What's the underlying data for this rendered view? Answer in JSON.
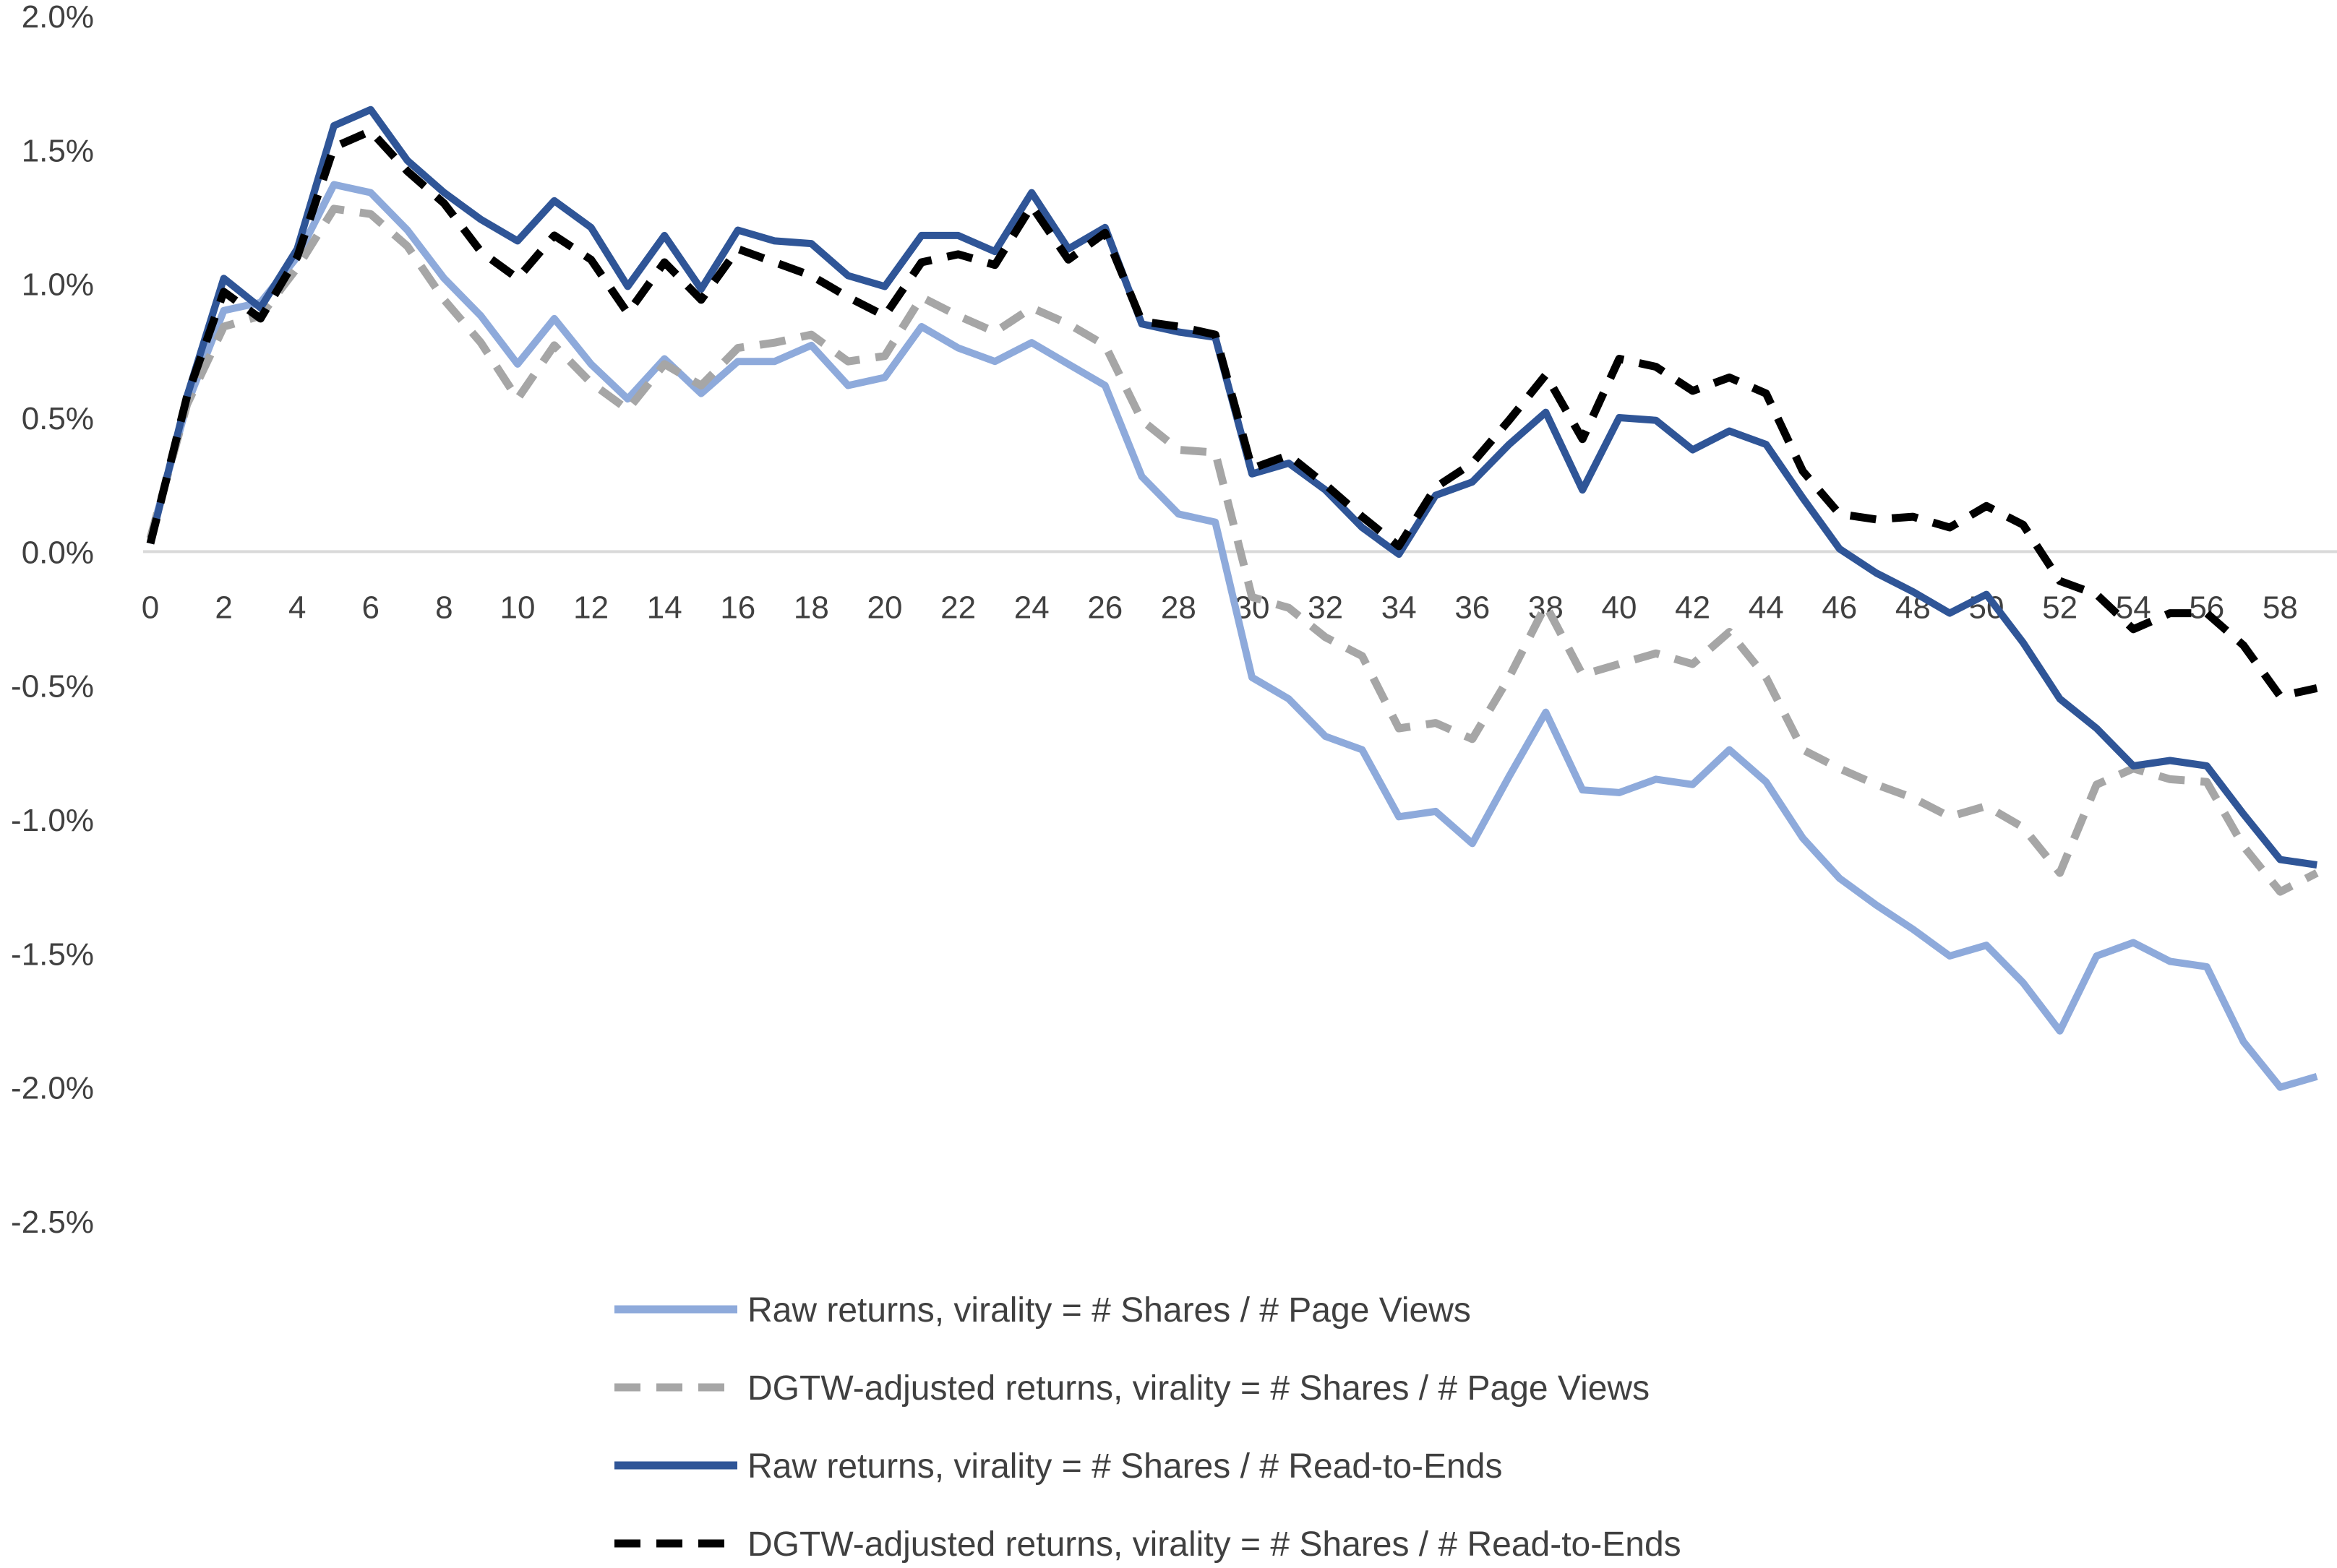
{
  "chart_data": {
    "type": "line",
    "title": "",
    "xlabel": "",
    "ylabel": "",
    "ylim": [
      -2.5,
      2.0
    ],
    "xlim": [
      0,
      59
    ],
    "grid": false,
    "legend_position": "bottom",
    "y_ticks": [
      "2.0%",
      "1.5%",
      "1.0%",
      "0.5%",
      "0.0%",
      "-0.5%",
      "-1.0%",
      "-1.5%",
      "-2.0%",
      "-2.5%"
    ],
    "y_tick_values": [
      2.0,
      1.5,
      1.0,
      0.5,
      0.0,
      -0.5,
      -1.0,
      -1.5,
      -2.0,
      -2.5
    ],
    "x_ticks": [
      "0",
      "2",
      "4",
      "6",
      "8",
      "10",
      "12",
      "14",
      "16",
      "18",
      "20",
      "22",
      "24",
      "26",
      "28",
      "30",
      "32",
      "34",
      "36",
      "38",
      "40",
      "42",
      "44",
      "46",
      "48",
      "50",
      "52",
      "54",
      "56",
      "58"
    ],
    "x_tick_values": [
      0,
      2,
      4,
      6,
      8,
      10,
      12,
      14,
      16,
      18,
      20,
      22,
      24,
      26,
      28,
      30,
      32,
      34,
      36,
      38,
      40,
      42,
      44,
      46,
      48,
      50,
      52,
      54,
      56,
      58
    ],
    "x": [
      0,
      1,
      2,
      3,
      4,
      5,
      6,
      7,
      8,
      9,
      10,
      11,
      12,
      13,
      14,
      15,
      16,
      17,
      18,
      19,
      20,
      21,
      22,
      23,
      24,
      25,
      26,
      27,
      28,
      29,
      30,
      31,
      32,
      33,
      34,
      35,
      36,
      37,
      38,
      39,
      40,
      41,
      42,
      43,
      44,
      45,
      46,
      47,
      48,
      49,
      50,
      51,
      52,
      53,
      54,
      55,
      56,
      57,
      58,
      59
    ],
    "series": [
      {
        "name": "Raw returns, virality = # Shares / # Page Views",
        "color": "#8eaadb",
        "dash": "solid",
        "values": [
          0.05,
          0.55,
          0.9,
          0.93,
          1.1,
          1.37,
          1.34,
          1.2,
          1.02,
          0.88,
          0.7,
          0.87,
          0.7,
          0.57,
          0.72,
          0.59,
          0.71,
          0.71,
          0.77,
          0.62,
          0.65,
          0.84,
          0.76,
          0.71,
          0.78,
          0.7,
          0.62,
          0.28,
          0.14,
          0.11,
          -0.47,
          -0.55,
          -0.69,
          -0.74,
          -0.99,
          -0.97,
          -1.09,
          -0.84,
          -0.6,
          -0.89,
          -0.9,
          -0.85,
          -0.87,
          -0.74,
          -0.86,
          -1.07,
          -1.22,
          -1.32,
          -1.41,
          -1.51,
          -1.47,
          -1.61,
          -1.79,
          -1.51,
          -1.46,
          -1.53,
          -1.55,
          -1.83,
          -2.0,
          -1.96
        ]
      },
      {
        "name": "DGTW-adjusted returns, virality = # Shares / # Page Views",
        "color": "#a6a6a6",
        "dash": "dashed",
        "values": [
          0.05,
          0.55,
          0.84,
          0.88,
          1.06,
          1.28,
          1.26,
          1.14,
          0.94,
          0.78,
          0.57,
          0.77,
          0.63,
          0.53,
          0.7,
          0.62,
          0.76,
          0.78,
          0.81,
          0.71,
          0.73,
          0.95,
          0.88,
          0.82,
          0.91,
          0.85,
          0.77,
          0.49,
          0.38,
          0.37,
          -0.17,
          -0.21,
          -0.32,
          -0.39,
          -0.66,
          -0.64,
          -0.7,
          -0.47,
          -0.2,
          -0.46,
          -0.42,
          -0.38,
          -0.42,
          -0.3,
          -0.47,
          -0.74,
          -0.81,
          -0.87,
          -0.92,
          -0.99,
          -0.95,
          -1.03,
          -1.2,
          -0.87,
          -0.81,
          -0.85,
          -0.86,
          -1.1,
          -1.27,
          -1.2
        ]
      },
      {
        "name": "Raw returns, virality = # Shares / # Read-to-Ends",
        "color": "#2f5597",
        "dash": "solid",
        "values": [
          0.03,
          0.58,
          1.02,
          0.91,
          1.13,
          1.59,
          1.65,
          1.46,
          1.34,
          1.24,
          1.16,
          1.31,
          1.21,
          0.99,
          1.18,
          0.98,
          1.2,
          1.16,
          1.15,
          1.03,
          0.99,
          1.18,
          1.18,
          1.12,
          1.34,
          1.13,
          1.21,
          0.85,
          0.82,
          0.8,
          0.29,
          0.33,
          0.23,
          0.09,
          -0.01,
          0.21,
          0.26,
          0.4,
          0.52,
          0.23,
          0.5,
          0.49,
          0.38,
          0.45,
          0.4,
          0.2,
          0.01,
          -0.08,
          -0.15,
          -0.23,
          -0.16,
          -0.34,
          -0.55,
          -0.66,
          -0.8,
          -0.78,
          -0.8,
          -0.98,
          -1.15,
          -1.17
        ]
      },
      {
        "name": "DGTW-adjusted returns, virality = # Shares / # Read-to-Ends",
        "color": "#000000",
        "dash": "dashed",
        "values": [
          0.03,
          0.58,
          0.97,
          0.87,
          1.1,
          1.51,
          1.57,
          1.42,
          1.3,
          1.12,
          1.02,
          1.18,
          1.09,
          0.89,
          1.08,
          0.94,
          1.13,
          1.08,
          1.03,
          0.95,
          0.88,
          1.08,
          1.11,
          1.07,
          1.29,
          1.09,
          1.19,
          0.86,
          0.84,
          0.81,
          0.31,
          0.36,
          0.25,
          0.13,
          0.02,
          0.24,
          0.33,
          0.49,
          0.66,
          0.42,
          0.72,
          0.69,
          0.6,
          0.65,
          0.59,
          0.3,
          0.14,
          0.12,
          0.13,
          0.09,
          0.17,
          0.1,
          -0.11,
          -0.16,
          -0.29,
          -0.23,
          -0.23,
          -0.35,
          -0.54,
          -0.51
        ]
      }
    ]
  }
}
